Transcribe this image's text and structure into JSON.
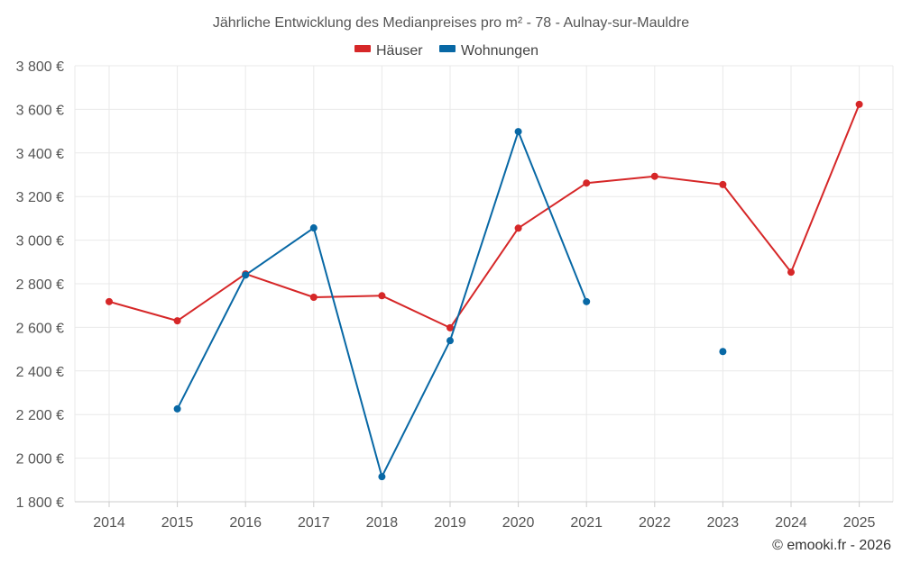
{
  "chart_data": {
    "type": "line",
    "title": "Jährliche Entwicklung des Medianpreises pro m² - 78 - Aulnay-sur-Mauldre",
    "x": [
      "2014",
      "2015",
      "2016",
      "2017",
      "2018",
      "2019",
      "2020",
      "2021",
      "2022",
      "2023",
      "2024",
      "2025"
    ],
    "ylim": [
      1800,
      3800
    ],
    "yticks": [
      1800,
      2000,
      2200,
      2400,
      2600,
      2800,
      3000,
      3200,
      3400,
      3600,
      3800
    ],
    "ytick_labels": [
      "1 800 €",
      "2 000 €",
      "2 200 €",
      "2 400 €",
      "2 600 €",
      "2 800 €",
      "3 000 €",
      "3 200 €",
      "3 400 €",
      "3 600 €",
      "3 800 €"
    ],
    "grid": true,
    "legend_position": "top-center",
    "series": [
      {
        "name": "Häuser",
        "color": "#d62728",
        "values": [
          2718,
          2630,
          2845,
          2738,
          2745,
          2598,
          3055,
          3262,
          3293,
          3255,
          2853,
          3623
        ]
      },
      {
        "name": "Wohnungen",
        "color": "#0868a5",
        "values": [
          null,
          2226,
          2840,
          3056,
          1915,
          2539,
          3498,
          2718,
          null,
          2489,
          null,
          null
        ]
      }
    ],
    "credit": "© emooki.fr - 2026"
  }
}
